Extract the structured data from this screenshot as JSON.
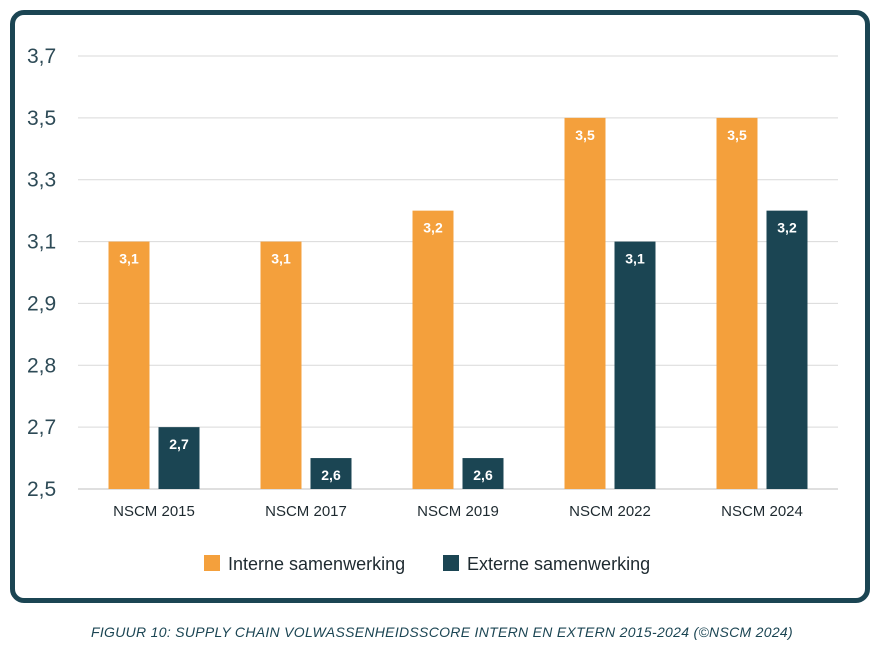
{
  "chart_data": {
    "type": "bar",
    "categories": [
      "NSCM 2015",
      "NSCM 2017",
      "NSCM 2019",
      "NSCM 2022",
      "NSCM 2024"
    ],
    "series": [
      {
        "name": "Interne samenwerking",
        "values": [
          3.1,
          3.1,
          3.2,
          3.5,
          3.5
        ],
        "labels": [
          "3,1",
          "3,1",
          "3,2",
          "3,5",
          "3,5"
        ],
        "color": "#f4a03c"
      },
      {
        "name": "Externe samenwerking",
        "values": [
          2.7,
          2.6,
          2.6,
          3.1,
          3.2
        ],
        "labels": [
          "2,7",
          "2,6",
          "2,6",
          "3,1",
          "3,2"
        ],
        "color": "#1b4553"
      }
    ],
    "y_ticks": [
      "2,5",
      "2,7",
      "2,8",
      "2,9",
      "3,1",
      "3,3",
      "3,5",
      "3,7"
    ],
    "ylim": [
      2.5,
      3.7
    ],
    "grid": true,
    "legend_position": "bottom"
  },
  "caption": "FIGUUR 10: SUPPLY CHAIN VOLWASSENHEIDSSCORE INTERN EN EXTERN 2015-2024 (©NSCM 2024)",
  "colors": {
    "frame": "#1b4553",
    "grid": "#d9d9d9"
  }
}
